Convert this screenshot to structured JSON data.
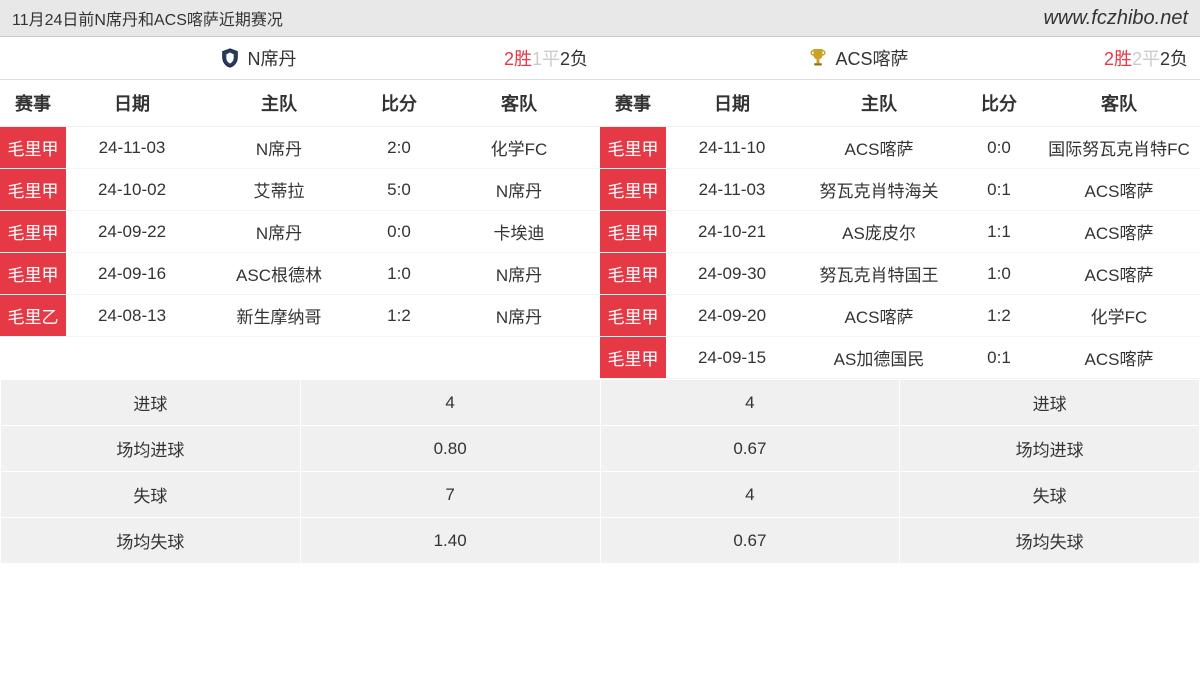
{
  "header": {
    "title": "11月24日前N席丹和ACS喀萨近期赛况",
    "url": "www.fczhibo.net"
  },
  "columns": {
    "comp": "赛事",
    "date": "日期",
    "home": "主队",
    "score": "比分",
    "away": "客队"
  },
  "recordLabels": {
    "win": "胜",
    "draw": "平",
    "loss": "负"
  },
  "teamA": {
    "name": "N席丹",
    "record": {
      "win": "2",
      "draw": "1",
      "loss": "2"
    },
    "matches": [
      {
        "comp": "毛里甲",
        "date": "24-11-03",
        "home": "N席丹",
        "score": "2:0",
        "away": "化学FC"
      },
      {
        "comp": "毛里甲",
        "date": "24-10-02",
        "home": "艾蒂拉",
        "score": "5:0",
        "away": "N席丹"
      },
      {
        "comp": "毛里甲",
        "date": "24-09-22",
        "home": "N席丹",
        "score": "0:0",
        "away": "卡埃迪"
      },
      {
        "comp": "毛里甲",
        "date": "24-09-16",
        "home": "ASC根德林",
        "score": "1:0",
        "away": "N席丹"
      },
      {
        "comp": "毛里乙",
        "date": "24-08-13",
        "home": "新生摩纳哥",
        "score": "1:2",
        "away": "N席丹"
      }
    ]
  },
  "teamB": {
    "name": "ACS喀萨",
    "record": {
      "win": "2",
      "draw": "2",
      "loss": "2"
    },
    "matches": [
      {
        "comp": "毛里甲",
        "date": "24-11-10",
        "home": "ACS喀萨",
        "score": "0:0",
        "away": "国际努瓦克肖特FC"
      },
      {
        "comp": "毛里甲",
        "date": "24-11-03",
        "home": "努瓦克肖特海关",
        "score": "0:1",
        "away": "ACS喀萨"
      },
      {
        "comp": "毛里甲",
        "date": "24-10-21",
        "home": "AS庞皮尔",
        "score": "1:1",
        "away": "ACS喀萨"
      },
      {
        "comp": "毛里甲",
        "date": "24-09-30",
        "home": "努瓦克肖特国王",
        "score": "1:0",
        "away": "ACS喀萨"
      },
      {
        "comp": "毛里甲",
        "date": "24-09-20",
        "home": "ACS喀萨",
        "score": "1:2",
        "away": "化学FC"
      },
      {
        "comp": "毛里甲",
        "date": "24-09-15",
        "home": "AS加德国民",
        "score": "0:1",
        "away": "ACS喀萨"
      }
    ]
  },
  "stats": {
    "rows": [
      {
        "labelL": "进球",
        "valL": "4",
        "valR": "4",
        "labelR": "进球"
      },
      {
        "labelL": "场均进球",
        "valL": "0.80",
        "valR": "0.67",
        "labelR": "场均进球"
      },
      {
        "labelL": "失球",
        "valL": "7",
        "valR": "4",
        "labelR": "失球"
      },
      {
        "labelL": "场均失球",
        "valL": "1.40",
        "valR": "0.67",
        "labelR": "场均失球"
      }
    ]
  },
  "colors": {
    "accent_red": "#e63946",
    "header_bg": "#e8e8e8",
    "stats_bg": "#f0f0f0",
    "draw_gray": "#cccccc"
  }
}
